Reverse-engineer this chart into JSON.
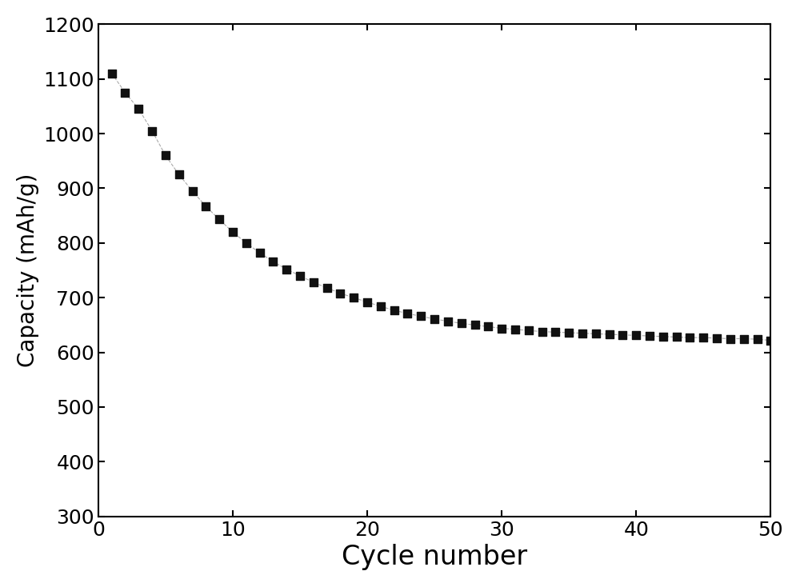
{
  "x": [
    1,
    2,
    3,
    4,
    5,
    6,
    7,
    8,
    9,
    10,
    11,
    12,
    13,
    14,
    15,
    16,
    17,
    18,
    19,
    20,
    21,
    22,
    23,
    24,
    25,
    26,
    27,
    28,
    29,
    30,
    31,
    32,
    33,
    34,
    35,
    36,
    37,
    38,
    39,
    40,
    41,
    42,
    43,
    44,
    45,
    46,
    47,
    48,
    49,
    50
  ],
  "y": [
    1110,
    1075,
    1045,
    1005,
    960,
    925,
    895,
    867,
    843,
    820,
    800,
    782,
    766,
    752,
    740,
    728,
    718,
    708,
    700,
    692,
    684,
    677,
    671,
    666,
    661,
    657,
    653,
    650,
    647,
    644,
    642,
    640,
    638,
    637,
    636,
    635,
    634,
    633,
    632,
    631,
    630,
    629,
    628,
    627,
    627,
    626,
    625,
    625,
    624,
    622
  ],
  "xlabel": "Cycle number",
  "ylabel": "Capacity (mAh/g)",
  "xlim": [
    0,
    50
  ],
  "ylim": [
    300,
    1200
  ],
  "yticks": [
    300,
    400,
    500,
    600,
    700,
    800,
    900,
    1000,
    1100,
    1200
  ],
  "xticks": [
    0,
    10,
    20,
    30,
    40,
    50
  ],
  "marker": "s",
  "marker_color": "#111111",
  "marker_size": 56,
  "line_style": "--",
  "line_color": "#aaaaaa",
  "line_width": 0.8,
  "xlabel_fontsize": 24,
  "ylabel_fontsize": 20,
  "tick_fontsize": 18,
  "background_color": "#ffffff",
  "spine_linewidth": 1.5,
  "show_top_spine": true,
  "show_right_spine": true
}
